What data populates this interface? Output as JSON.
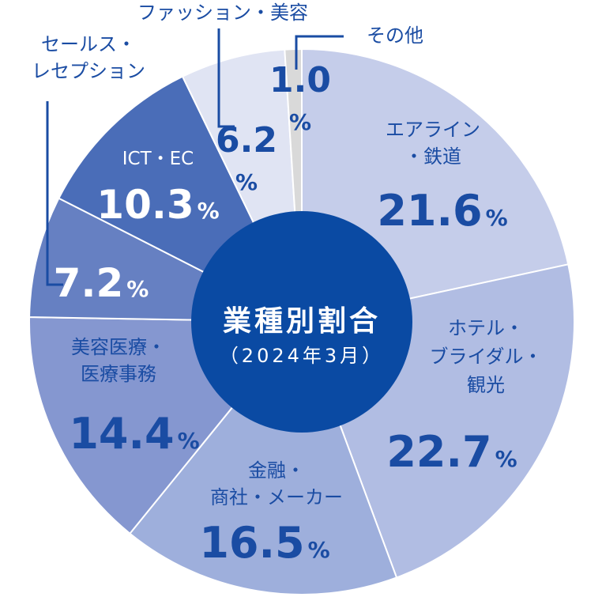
{
  "chart_data": {
    "type": "pie",
    "title": "業種別割合",
    "subtitle": "（2024年3月）",
    "unit": "%",
    "slices": [
      {
        "label_lines": [
          "エアライン",
          "・鉄道"
        ],
        "value": 21.6,
        "value_text": "21.6",
        "color": "#c5cdea"
      },
      {
        "label_lines": [
          "ホテル・",
          "ブライダル・",
          "観光"
        ],
        "value": 22.7,
        "value_text": "22.7",
        "color": "#b1bde3"
      },
      {
        "label_lines": [
          "金融・",
          "商社・メーカー"
        ],
        "value": 16.5,
        "value_text": "16.5",
        "color": "#9eafdc"
      },
      {
        "label_lines": [
          "美容医療・",
          "医療事務"
        ],
        "value": 14.4,
        "value_text": "14.4",
        "color": "#8597d0"
      },
      {
        "label_lines": [
          "セールス・",
          "レセプション"
        ],
        "value": 7.2,
        "value_text": "7.2",
        "color": "#6680c2"
      },
      {
        "label_lines": [
          "ICT・EC"
        ],
        "value": 10.3,
        "value_text": "10.3",
        "color": "#4a6db8"
      },
      {
        "label_lines": [
          "ファッション・美容"
        ],
        "value": 6.2,
        "value_text": "6.2",
        "color": "#e0e4f3"
      },
      {
        "label_lines": [
          "その他"
        ],
        "value": 1.0,
        "value_text": "1.0",
        "color": "#d9d9d9"
      }
    ],
    "center_color": "#0a4aa3",
    "text_color": "#1a4ca3"
  }
}
